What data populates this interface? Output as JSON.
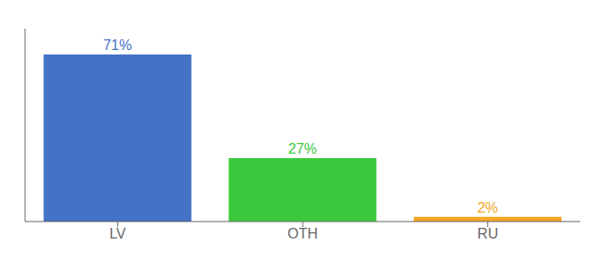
{
  "chart_data": {
    "type": "bar",
    "categories": [
      "LV",
      "OTH",
      "RU"
    ],
    "values": [
      71,
      27,
      2
    ],
    "value_labels": [
      "71%",
      "27%",
      "2%"
    ],
    "colors": [
      "#4472c4",
      "#3dc93d",
      "#f5a623"
    ],
    "ylim": [
      0,
      82
    ],
    "grid": false,
    "data_labels": true,
    "tick_labels": "x"
  }
}
